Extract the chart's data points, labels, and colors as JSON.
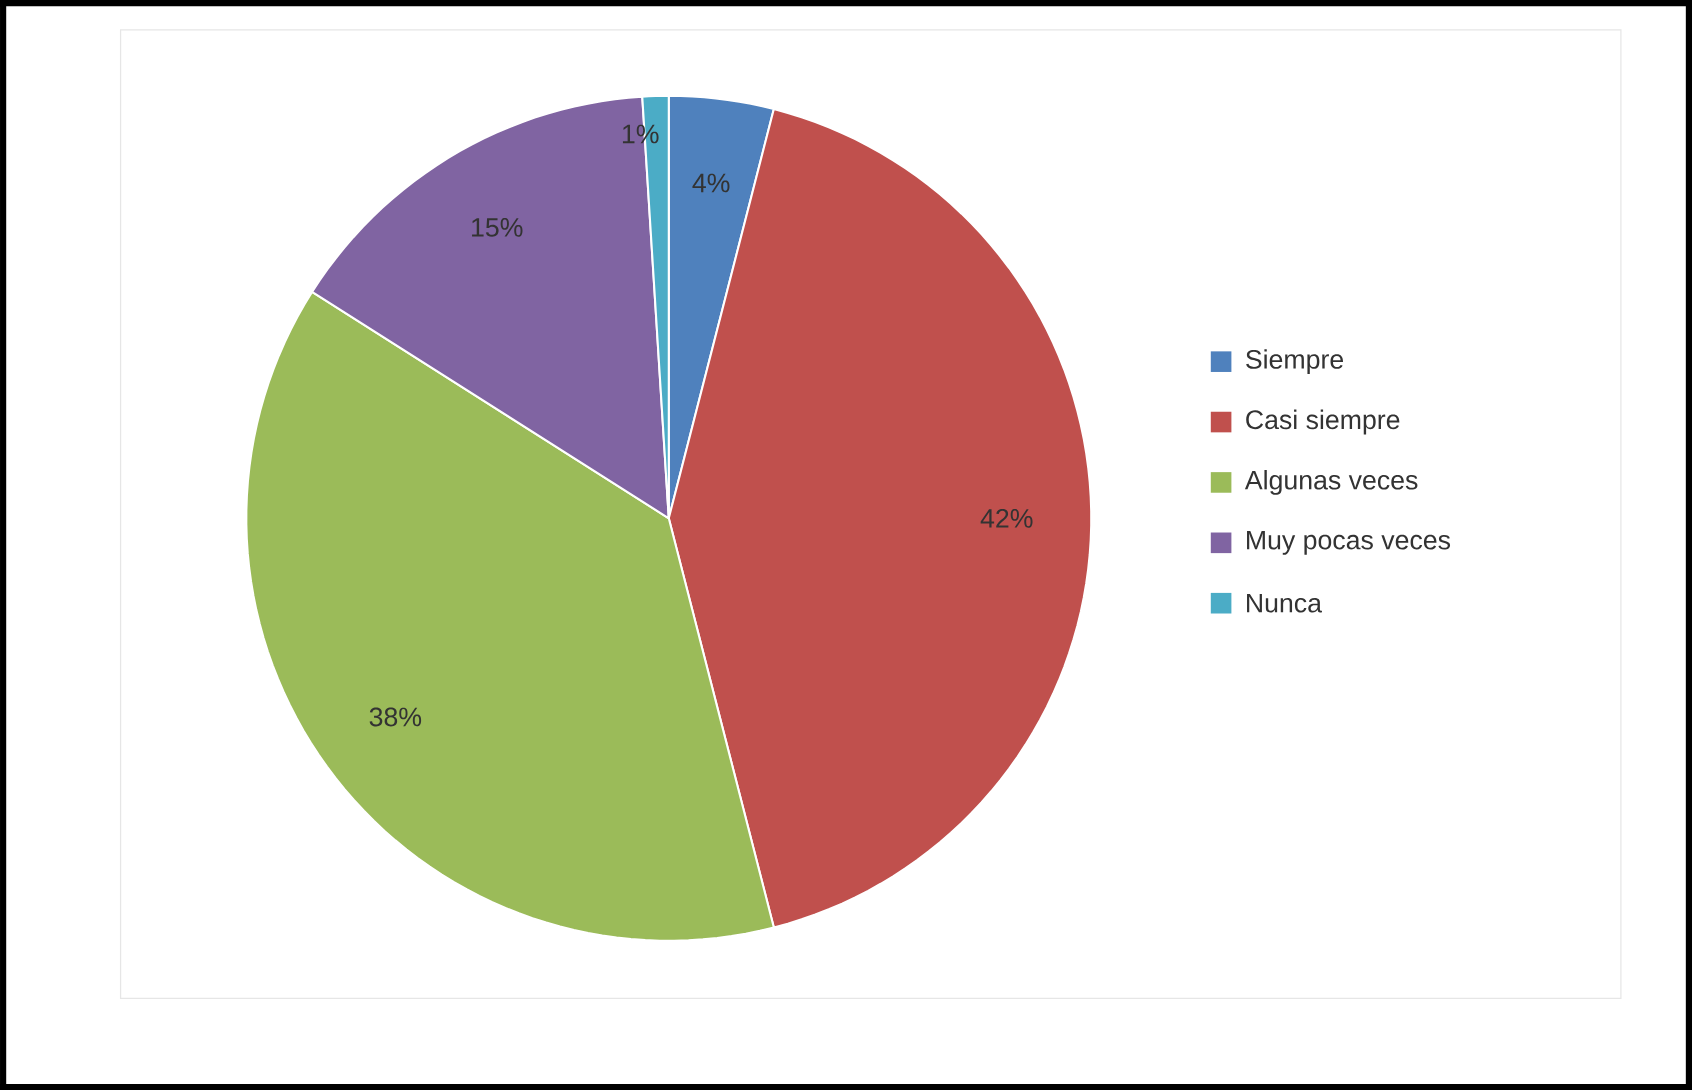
{
  "chart_data": {
    "type": "pie",
    "categories": [
      "Siempre",
      "Casi siempre",
      "Algunas veces",
      "Muy pocas veces",
      "Nunca"
    ],
    "values": [
      4,
      42,
      38,
      15,
      1
    ],
    "colors": [
      "#4f81bd",
      "#c0504d",
      "#9bbb59",
      "#8064a2",
      "#4bacc6"
    ],
    "data_labels": true,
    "value_labels": [
      "4%",
      "42%",
      "38%",
      "15%",
      "1%"
    ],
    "legend": "right"
  }
}
